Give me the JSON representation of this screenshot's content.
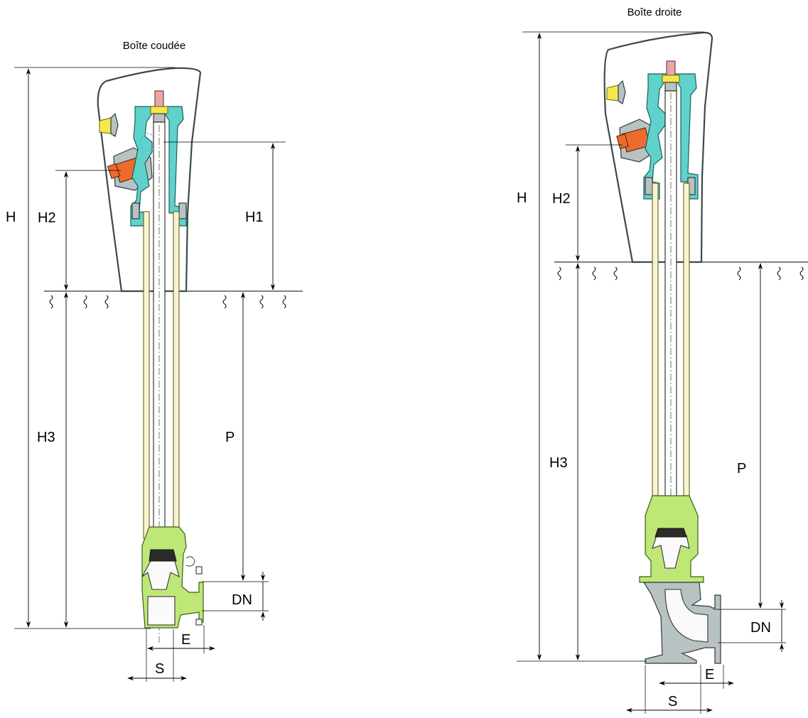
{
  "left_figure": {
    "caption": "Boîte coudée",
    "labels": {
      "H": "H",
      "H1": "H1",
      "H2": "H2",
      "H3": "H3",
      "P": "P",
      "DN": "DN",
      "E": "E",
      "S": "S"
    }
  },
  "right_figure": {
    "caption": "Boîte droite",
    "labels": {
      "H": "H",
      "H2": "H2",
      "H3": "H3",
      "P": "P",
      "DN": "DN",
      "E": "E",
      "S": "S"
    }
  },
  "colors": {
    "valve_body": "#5fd2cc",
    "drain_valve": "#ee6b2e",
    "cap": "#f6e84b",
    "lower_body_elbow": "#bfe777",
    "lower_body_straight": "#b8c2c2"
  }
}
